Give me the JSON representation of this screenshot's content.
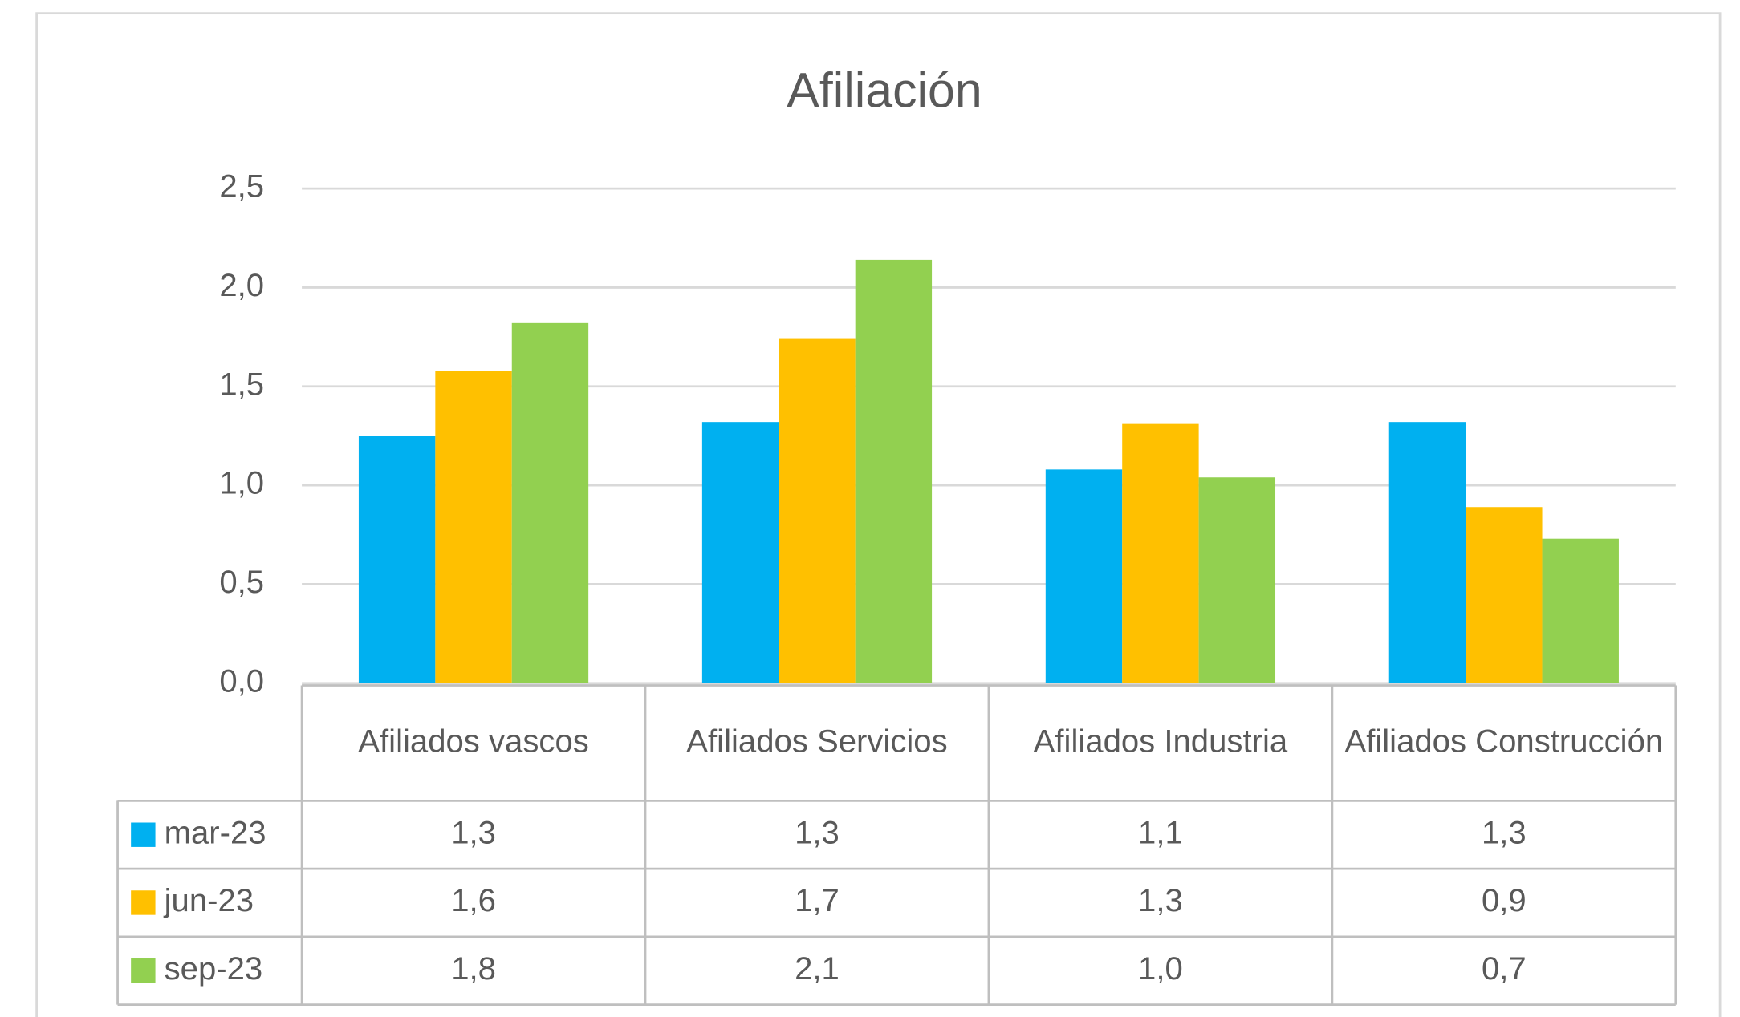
{
  "chart_data": {
    "type": "bar",
    "title": "Afiliación",
    "categories": [
      "Afiliados vascos",
      "Afiliados Servicios",
      "Afiliados Industria",
      "Afiliados Construcción"
    ],
    "series": [
      {
        "name": "mar-23",
        "color": "#00b0f0",
        "values": [
          1.25,
          1.32,
          1.08,
          1.32
        ],
        "value_labels": [
          "1,3",
          "1,3",
          "1,1",
          "1,3"
        ]
      },
      {
        "name": "jun-23",
        "color": "#ffc000",
        "values": [
          1.58,
          1.74,
          1.31,
          0.89
        ],
        "value_labels": [
          "1,6",
          "1,7",
          "1,3",
          "0,9"
        ]
      },
      {
        "name": "sep-23",
        "color": "#92d050",
        "values": [
          1.82,
          2.14,
          1.04,
          0.73
        ],
        "value_labels": [
          "1,8",
          "2,1",
          "1,0",
          "0,7"
        ]
      }
    ],
    "ylim": [
      0,
      2.5
    ],
    "yticks": [
      {
        "value": 0,
        "label": "0,0"
      },
      {
        "value": 0.5,
        "label": "0,5"
      },
      {
        "value": 1,
        "label": "1,0"
      },
      {
        "value": 1.5,
        "label": "1,5"
      },
      {
        "value": 2,
        "label": "2,0"
      },
      {
        "value": 2.5,
        "label": "2,5"
      }
    ],
    "grid": true,
    "legend": "table"
  }
}
